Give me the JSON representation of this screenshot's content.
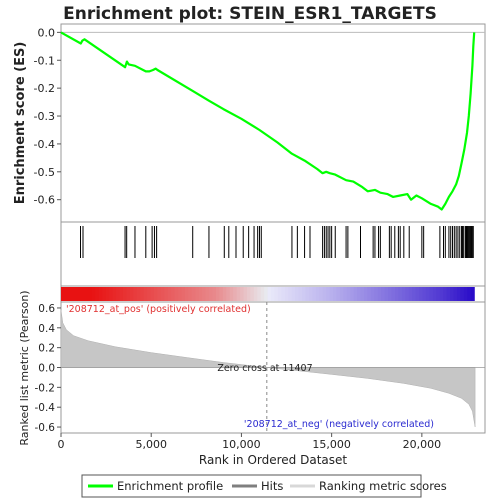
{
  "chart_data": {
    "type": "line",
    "title": "Enrichment plot: STEIN_ESR1_TARGETS",
    "panels": {
      "enrichment": {
        "ylabel": "Enrichment score (ES)",
        "ylim": [
          -0.68,
          0.03
        ],
        "yticks": [
          0.0,
          -0.1,
          -0.2,
          -0.3,
          -0.4,
          -0.5,
          -0.6
        ],
        "series": [
          {
            "name": "Enrichment profile",
            "color": "#00ff00",
            "x": [
              0,
              1100,
              1180,
              1300,
              3550,
              3650,
              3750,
              4100,
              4700,
              4900,
              5100,
              5250,
              5350,
              7300,
              8200,
              9000,
              10000,
              11000,
              12000,
              12800,
              13500,
              14200,
              14500,
              14700,
              14900,
              15200,
              15800,
              16200,
              16700,
              17000,
              17400,
              17700,
              18100,
              18400,
              18800,
              19200,
              19400,
              19700,
              20000,
              20500,
              20900,
              21100,
              21300,
              21500,
              21700,
              21900,
              22050,
              22200,
              22350,
              22500,
              22600,
              22700,
              22800,
              22850,
              22900
            ],
            "y": [
              0.0,
              -0.04,
              -0.03,
              -0.025,
              -0.125,
              -0.105,
              -0.115,
              -0.12,
              -0.14,
              -0.14,
              -0.135,
              -0.13,
              -0.135,
              -0.21,
              -0.245,
              -0.275,
              -0.31,
              -0.35,
              -0.395,
              -0.435,
              -0.46,
              -0.49,
              -0.505,
              -0.5,
              -0.505,
              -0.51,
              -0.53,
              -0.535,
              -0.555,
              -0.57,
              -0.565,
              -0.575,
              -0.58,
              -0.59,
              -0.585,
              -0.58,
              -0.6,
              -0.585,
              -0.595,
              -0.615,
              -0.625,
              -0.635,
              -0.615,
              -0.59,
              -0.57,
              -0.545,
              -0.515,
              -0.47,
              -0.42,
              -0.36,
              -0.3,
              -0.22,
              -0.12,
              -0.05,
              0.0
            ]
          }
        ]
      },
      "hits": {
        "name": "Hits",
        "x": [
          1080,
          1220,
          3550,
          3640,
          4100,
          4700,
          5050,
          5180,
          5300,
          7300,
          8200,
          9050,
          9300,
          9700,
          10100,
          10400,
          10700,
          10900,
          11000,
          11100,
          12800,
          13100,
          13500,
          13800,
          14500,
          14600,
          14700,
          14800,
          14900,
          15000,
          15200,
          15800,
          15900,
          16600,
          17300,
          17400,
          17600,
          17700,
          18200,
          18300,
          18500,
          18700,
          18800,
          19000,
          19300,
          20000,
          20100,
          21000,
          21200,
          21300,
          21500,
          21600,
          21700,
          21800,
          21900,
          22000,
          22100,
          22200,
          22250,
          22300,
          22400,
          22450,
          22500,
          22550,
          22600,
          22650,
          22700,
          22750,
          22800,
          22850
        ]
      },
      "ranked_list": {
        "ylabel": "Ranked list metric (Pearson)",
        "xlabel": "Rank in Ordered Dataset",
        "xlim": [
          0,
          23500
        ],
        "xticks": [
          0,
          5000,
          10000,
          15000,
          20000
        ],
        "ylim": [
          -0.66,
          0.66
        ],
        "yticks": [
          0.6,
          0.4,
          0.2,
          0.0,
          -0.2,
          -0.4,
          -0.6
        ],
        "zero_cross": 11407,
        "zero_cross_label": "Zero cross at 11407",
        "pos_label": "'208712_at_pos' (positively correlated)",
        "neg_label": "'208712_at_neg' (negatively correlated)",
        "profile": {
          "x": [
            0,
            100,
            300,
            700,
            1500,
            3000,
            5000,
            7000,
            9000,
            11407,
            13000,
            15000,
            17000,
            19000,
            20500,
            21500,
            22200,
            22600,
            22800,
            22950
          ],
          "y": [
            0.58,
            0.45,
            0.38,
            0.32,
            0.27,
            0.21,
            0.15,
            0.1,
            0.05,
            0.0,
            -0.03,
            -0.07,
            -0.11,
            -0.16,
            -0.21,
            -0.26,
            -0.31,
            -0.37,
            -0.44,
            -0.6
          ]
        }
      }
    },
    "legend": {
      "placement": "bottom",
      "items": [
        {
          "label": "Enrichment profile",
          "color": "#00ff00"
        },
        {
          "label": "Hits",
          "color": "#7f7f7f"
        },
        {
          "label": "Ranking metric scores",
          "color": "#d8d8d8"
        }
      ]
    }
  }
}
